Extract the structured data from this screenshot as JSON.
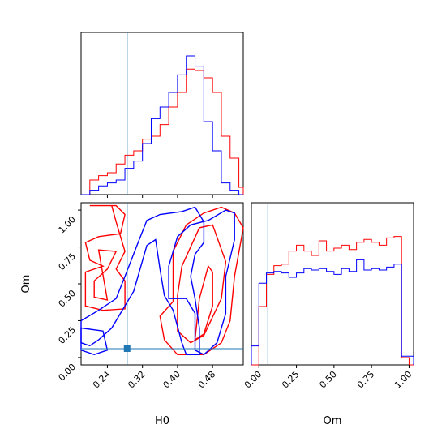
{
  "chart_data": {
    "type": "corner",
    "parameters": [
      "H0",
      "Om"
    ],
    "truths": {
      "H0": 0.285,
      "Om": 0.06
    },
    "colors": {
      "series_a": "#ff0000",
      "series_b": "#0000ff",
      "truth": "#1f77b4"
    },
    "panels": {
      "h0_hist": {
        "type": "histogram",
        "xlim": [
          0.18,
          0.55
        ],
        "bins": [
          0.18,
          0.19,
          0.2,
          0.21,
          0.22,
          0.23,
          0.24,
          0.25,
          0.26,
          0.27,
          0.28,
          0.29,
          0.3,
          0.31,
          0.32,
          0.33,
          0.34,
          0.35,
          0.36,
          0.37,
          0.38,
          0.39,
          0.4,
          0.41,
          0.42,
          0.43,
          0.44,
          0.45,
          0.46,
          0.47,
          0.48,
          0.49,
          0.5,
          0.51,
          0.52,
          0.53,
          0.54,
          0.55
        ],
        "series": [
          {
            "values": [
              0.0,
              0.0,
              0.1,
              0.1,
              0.13,
              0.13,
              0.15,
              0.15,
              0.21,
              0.21,
              0.27,
              0.27,
              0.3,
              0.3,
              0.38,
              0.38,
              0.4,
              0.4,
              0.48,
              0.48,
              0.6,
              0.6,
              0.7,
              0.7,
              0.86,
              0.86,
              0.85,
              0.85,
              0.8,
              0.8,
              0.7,
              0.7,
              0.4,
              0.4,
              0.25,
              0.25,
              0.05
            ]
          },
          {
            "values": [
              0.0,
              0.0,
              0.03,
              0.03,
              0.06,
              0.06,
              0.08,
              0.08,
              0.1,
              0.1,
              0.18,
              0.18,
              0.23,
              0.23,
              0.35,
              0.35,
              0.52,
              0.52,
              0.6,
              0.6,
              0.7,
              0.7,
              0.82,
              0.82,
              0.95,
              0.95,
              0.88,
              0.88,
              0.5,
              0.5,
              0.3,
              0.3,
              0.08,
              0.08,
              0.03,
              0.03,
              0.0
            ]
          }
        ]
      },
      "om_hist": {
        "type": "histogram",
        "xlim": [
          -0.05,
          1.03
        ],
        "bins": [
          -0.05,
          0.0,
          0.05,
          0.1,
          0.15,
          0.2,
          0.25,
          0.3,
          0.35,
          0.4,
          0.45,
          0.5,
          0.55,
          0.6,
          0.65,
          0.7,
          0.75,
          0.8,
          0.85,
          0.9,
          0.95,
          1.0,
          1.03
        ],
        "series": [
          {
            "values": [
              0.0,
              0.4,
              0.62,
              0.68,
              0.69,
              0.78,
              0.82,
              0.78,
              0.75,
              0.85,
              0.78,
              0.8,
              0.82,
              0.79,
              0.84,
              0.86,
              0.84,
              0.82,
              0.87,
              0.88,
              0.05,
              0.0
            ]
          },
          {
            "values": [
              0.13,
              0.56,
              0.63,
              0.64,
              0.63,
              0.6,
              0.63,
              0.66,
              0.65,
              0.66,
              0.64,
              0.62,
              0.66,
              0.64,
              0.72,
              0.65,
              0.66,
              0.65,
              0.67,
              0.69,
              0.06,
              0.06
            ]
          }
        ]
      },
      "joint": {
        "type": "contour",
        "xlim": [
          0.18,
          0.55
        ],
        "ylim": [
          -0.05,
          1.05
        ],
        "series": [
          {
            "contours": [
              [
                [
                  0.2,
                  1.03
                ],
                [
                  0.26,
                  1.03
                ],
                [
                  0.28,
                  0.97
                ],
                [
                  0.27,
                  0.84
                ],
                [
                  0.22,
                  0.82
                ],
                [
                  0.19,
                  0.78
                ],
                [
                  0.2,
                  0.66
                ],
                [
                  0.23,
                  0.62
                ],
                [
                  0.19,
                  0.58
                ],
                [
                  0.19,
                  0.35
                ],
                [
                  0.23,
                  0.32
                ],
                [
                  0.28,
                  0.33
                ],
                [
                  0.28,
                  0.52
                ],
                [
                  0.26,
                  0.6
                ],
                [
                  0.28,
                  0.72
                ],
                [
                  0.26,
                  0.92
                ],
                [
                  0.25,
                  1.03
                ]
              ],
              [
                [
                  0.22,
                  0.73
                ],
                [
                  0.26,
                  0.72
                ],
                [
                  0.24,
                  0.6
                ],
                [
                  0.21,
                  0.52
                ],
                [
                  0.21,
                  0.41
                ],
                [
                  0.24,
                  0.39
                ]
              ],
              [
                [
                  0.37,
                  0.12
                ],
                [
                  0.36,
                  0.28
                ],
                [
                  0.39,
                  0.38
                ],
                [
                  0.39,
                  0.72
                ],
                [
                  0.42,
                  0.9
                ],
                [
                  0.46,
                  0.98
                ],
                [
                  0.5,
                  1.02
                ],
                [
                  0.53,
                  0.98
                ],
                [
                  0.55,
                  0.88
                ],
                [
                  0.53,
                  0.55
                ],
                [
                  0.52,
                  0.25
                ],
                [
                  0.5,
                  0.1
                ],
                [
                  0.46,
                  0.02
                ],
                [
                  0.4,
                  0.02
                ]
              ],
              [
                [
                  0.4,
                  0.18
                ],
                [
                  0.4,
                  0.42
                ],
                [
                  0.41,
                  0.62
                ],
                [
                  0.45,
                  0.88
                ],
                [
                  0.48,
                  0.9
                ],
                [
                  0.51,
                  0.65
                ],
                [
                  0.5,
                  0.4
                ],
                [
                  0.46,
                  0.15
                ],
                [
                  0.43,
                  0.1
                ]
              ],
              [
                [
                  0.44,
                  0.12
                ],
                [
                  0.45,
                  0.4
                ],
                [
                  0.47,
                  0.62
                ],
                [
                  0.48,
                  0.58
                ],
                [
                  0.48,
                  0.35
                ],
                [
                  0.46,
                  0.16
                ]
              ]
            ]
          },
          {
            "contours": [
              [
                [
                  0.18,
                  0.25
                ],
                [
                  0.22,
                  0.32
                ],
                [
                  0.26,
                  0.4
                ],
                [
                  0.28,
                  0.55
                ],
                [
                  0.31,
                  0.78
                ],
                [
                  0.33,
                  0.93
                ],
                [
                  0.36,
                  0.97
                ],
                [
                  0.41,
                  0.99
                ],
                [
                  0.44,
                  1.02
                ],
                [
                  0.46,
                  0.92
                ],
                [
                  0.46,
                  0.78
                ],
                [
                  0.44,
                  0.7
                ],
                [
                  0.43,
                  0.55
                ],
                [
                  0.44,
                  0.4
                ],
                [
                  0.45,
                  0.2
                ],
                [
                  0.45,
                  0.02
                ],
                [
                  0.42,
                  0.02
                ],
                [
                  0.41,
                  0.1
                ],
                [
                  0.39,
                  0.32
                ],
                [
                  0.37,
                  0.42
                ],
                [
                  0.36,
                  0.6
                ],
                [
                  0.35,
                  0.8
                ],
                [
                  0.33,
                  0.76
                ],
                [
                  0.3,
                  0.45
                ],
                [
                  0.27,
                  0.3
                ],
                [
                  0.25,
                  0.2
                ],
                [
                  0.22,
                  0.12
                ],
                [
                  0.2,
                  0.08
                ],
                [
                  0.18,
                  0.1
                ]
              ],
              [
                [
                  0.38,
                  0.4
                ],
                [
                  0.38,
                  0.62
                ],
                [
                  0.4,
                  0.82
                ],
                [
                  0.43,
                  0.9
                ],
                [
                  0.47,
                  0.93
                ],
                [
                  0.51,
                  1.0
                ],
                [
                  0.53,
                  0.98
                ],
                [
                  0.53,
                  0.8
                ],
                [
                  0.51,
                  0.55
                ],
                [
                  0.51,
                  0.3
                ],
                [
                  0.49,
                  0.1
                ],
                [
                  0.46,
                  0.02
                ],
                [
                  0.44,
                  0.05
                ],
                [
                  0.44,
                  0.3
                ],
                [
                  0.42,
                  0.4
                ]
              ],
              [
                [
                  0.18,
                  0.2
                ],
                [
                  0.23,
                  0.18
                ],
                [
                  0.24,
                  0.05
                ],
                [
                  0.21,
                  0.02
                ],
                [
                  0.18,
                  0.05
                ]
              ]
            ]
          }
        ]
      }
    },
    "axes": {
      "h0_ticks": [
        "0.24",
        "0.32",
        "0.40",
        "0.48"
      ],
      "h0_tick_values": [
        0.24,
        0.32,
        0.4,
        0.48
      ],
      "om_ticks": [
        "0.00",
        "0.25",
        "0.50",
        "0.75",
        "1.00"
      ],
      "om_tick_values": [
        0.0,
        0.25,
        0.5,
        0.75,
        1.0
      ],
      "xlabel_left": "H0",
      "xlabel_right": "Om",
      "ylabel_left": "Om"
    }
  }
}
